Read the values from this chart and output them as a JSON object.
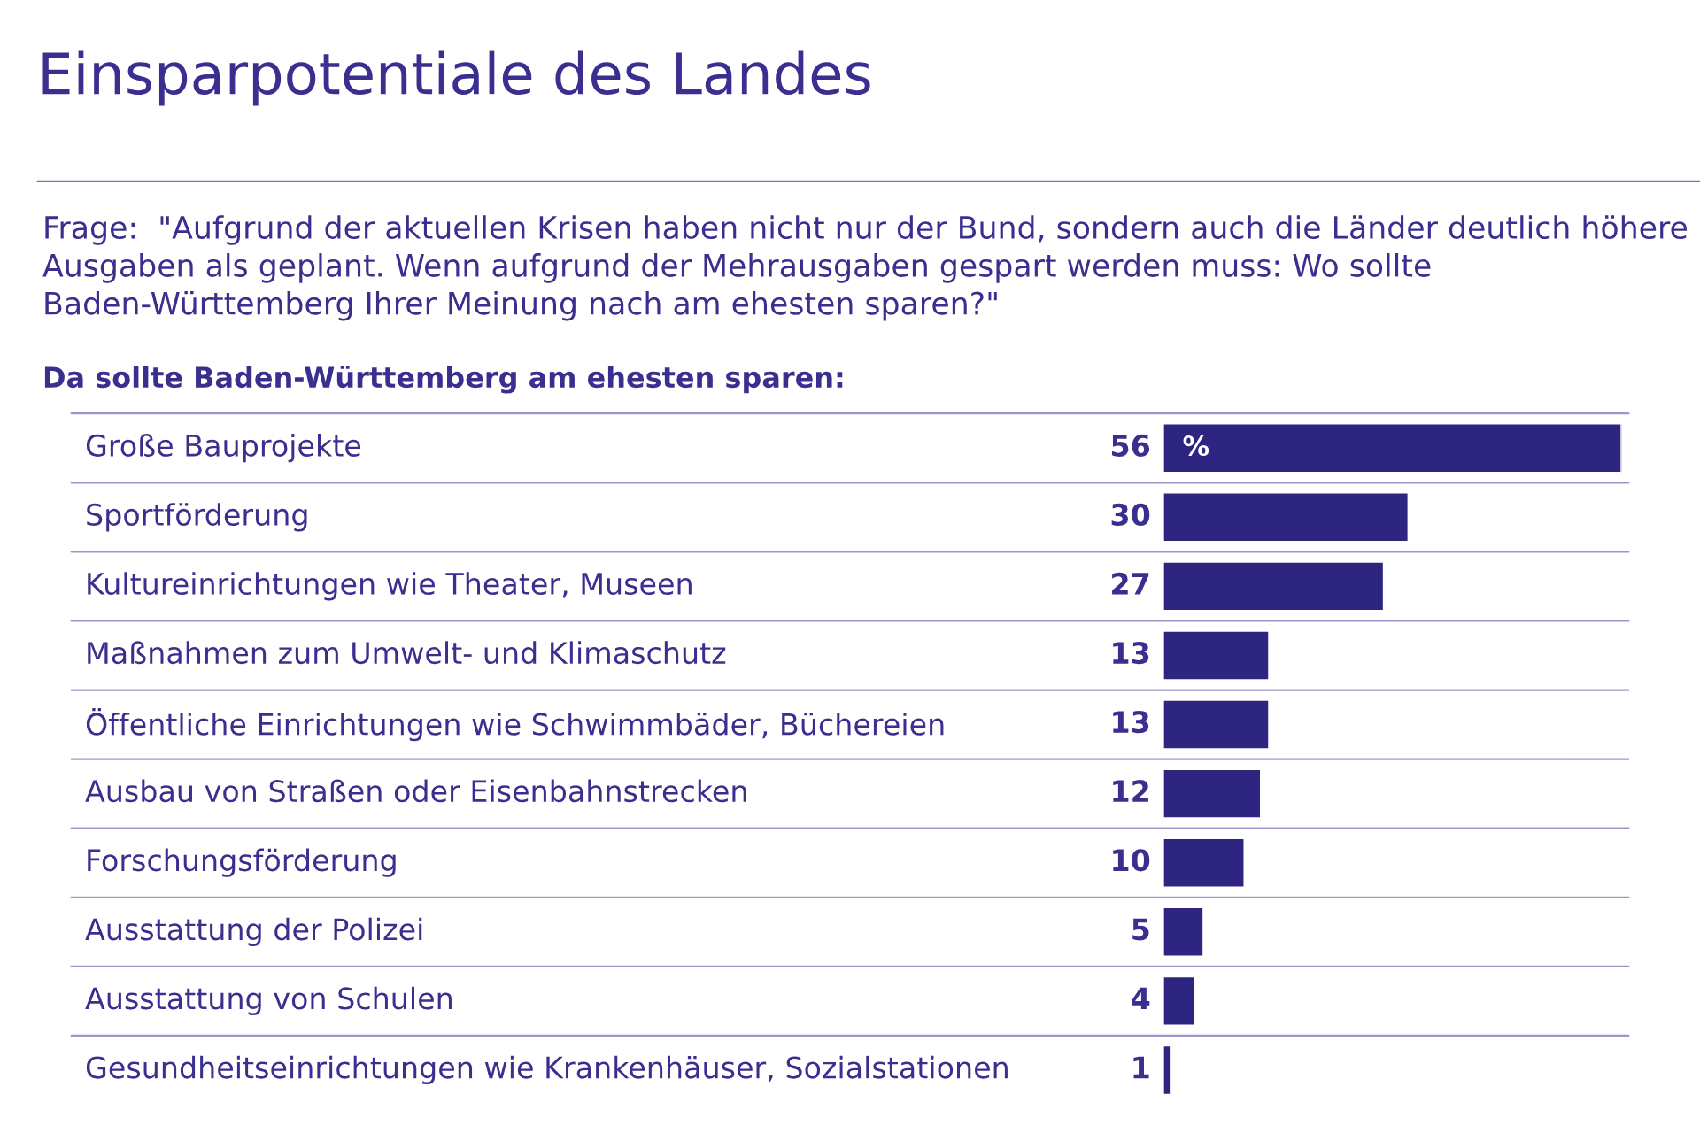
{
  "chart_data": {
    "type": "bar",
    "orientation": "horizontal",
    "title": "Einsparpotentiale des Landes",
    "subtitle": "Frage:  \"Aufgrund der aktuellen Krisen haben nicht nur der Bund, sondern auch die Länder deutlich höhere Ausgaben als geplant. Wenn aufgrund der Mehrausgaben gespart werden muss: Wo sollte Baden-Württemberg Ihrer Meinung nach am ehesten sparen?\"",
    "annotations": [
      "Da sollte Baden-Württemberg am ehesten sparen:",
      {
        "text": "%",
        "x": 0,
        "y": "Große Bauprojekte"
      }
    ],
    "categories": [
      "Große Bauprojekte",
      "Sportförderung",
      "Kultureinrichtungen wie Theater, Museen",
      "Maßnahmen zum Umwelt- und Klimaschutz",
      "Öffentliche Einrichtungen wie Schwimmbäder, Büchereien",
      "Ausbau von Straßen oder Eisenbahnstrecken",
      "Forschungsförderung",
      "Ausstattung der Polizei",
      "Ausstattung von Schulen",
      "Gesundheitseinrichtungen wie Krankenhäuser, Sozialstationen"
    ],
    "values": [
      56,
      30,
      27,
      13,
      13,
      12,
      10,
      5,
      4,
      1
    ],
    "color": "#2e2580",
    "data_labels": true,
    "grid": "y"
  }
}
